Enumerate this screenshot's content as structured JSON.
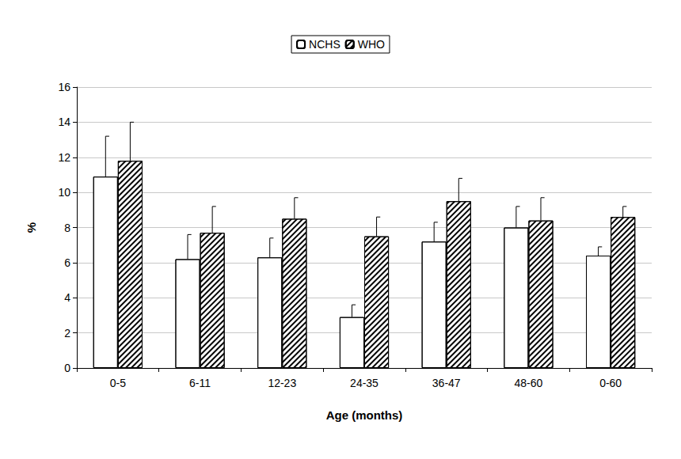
{
  "chart_data": {
    "type": "bar",
    "x_label": "Age (months)",
    "y_label": "%",
    "categories": [
      "0-5",
      "6-11",
      "12-23",
      "24-35",
      "36-47",
      "48-60",
      "0-60"
    ],
    "series": [
      {
        "name": "NCHS",
        "color": "#ffffff",
        "values": [
          10.9,
          6.2,
          6.3,
          2.9,
          7.2,
          8.0,
          6.4
        ],
        "errors": [
          2.3,
          1.4,
          1.1,
          0.7,
          1.1,
          1.2,
          0.5
        ]
      },
      {
        "name": "WHO",
        "color": "#ffffff",
        "values": [
          11.8,
          7.7,
          8.5,
          7.5,
          9.5,
          8.4,
          8.6
        ],
        "errors": [
          2.2,
          1.5,
          1.2,
          1.1,
          1.3,
          1.3,
          0.6
        ]
      }
    ],
    "ylim": [
      0,
      16
    ],
    "yticks": [
      0,
      2,
      4,
      6,
      8,
      10,
      12,
      14,
      16
    ],
    "grid": true,
    "legend": "top"
  }
}
